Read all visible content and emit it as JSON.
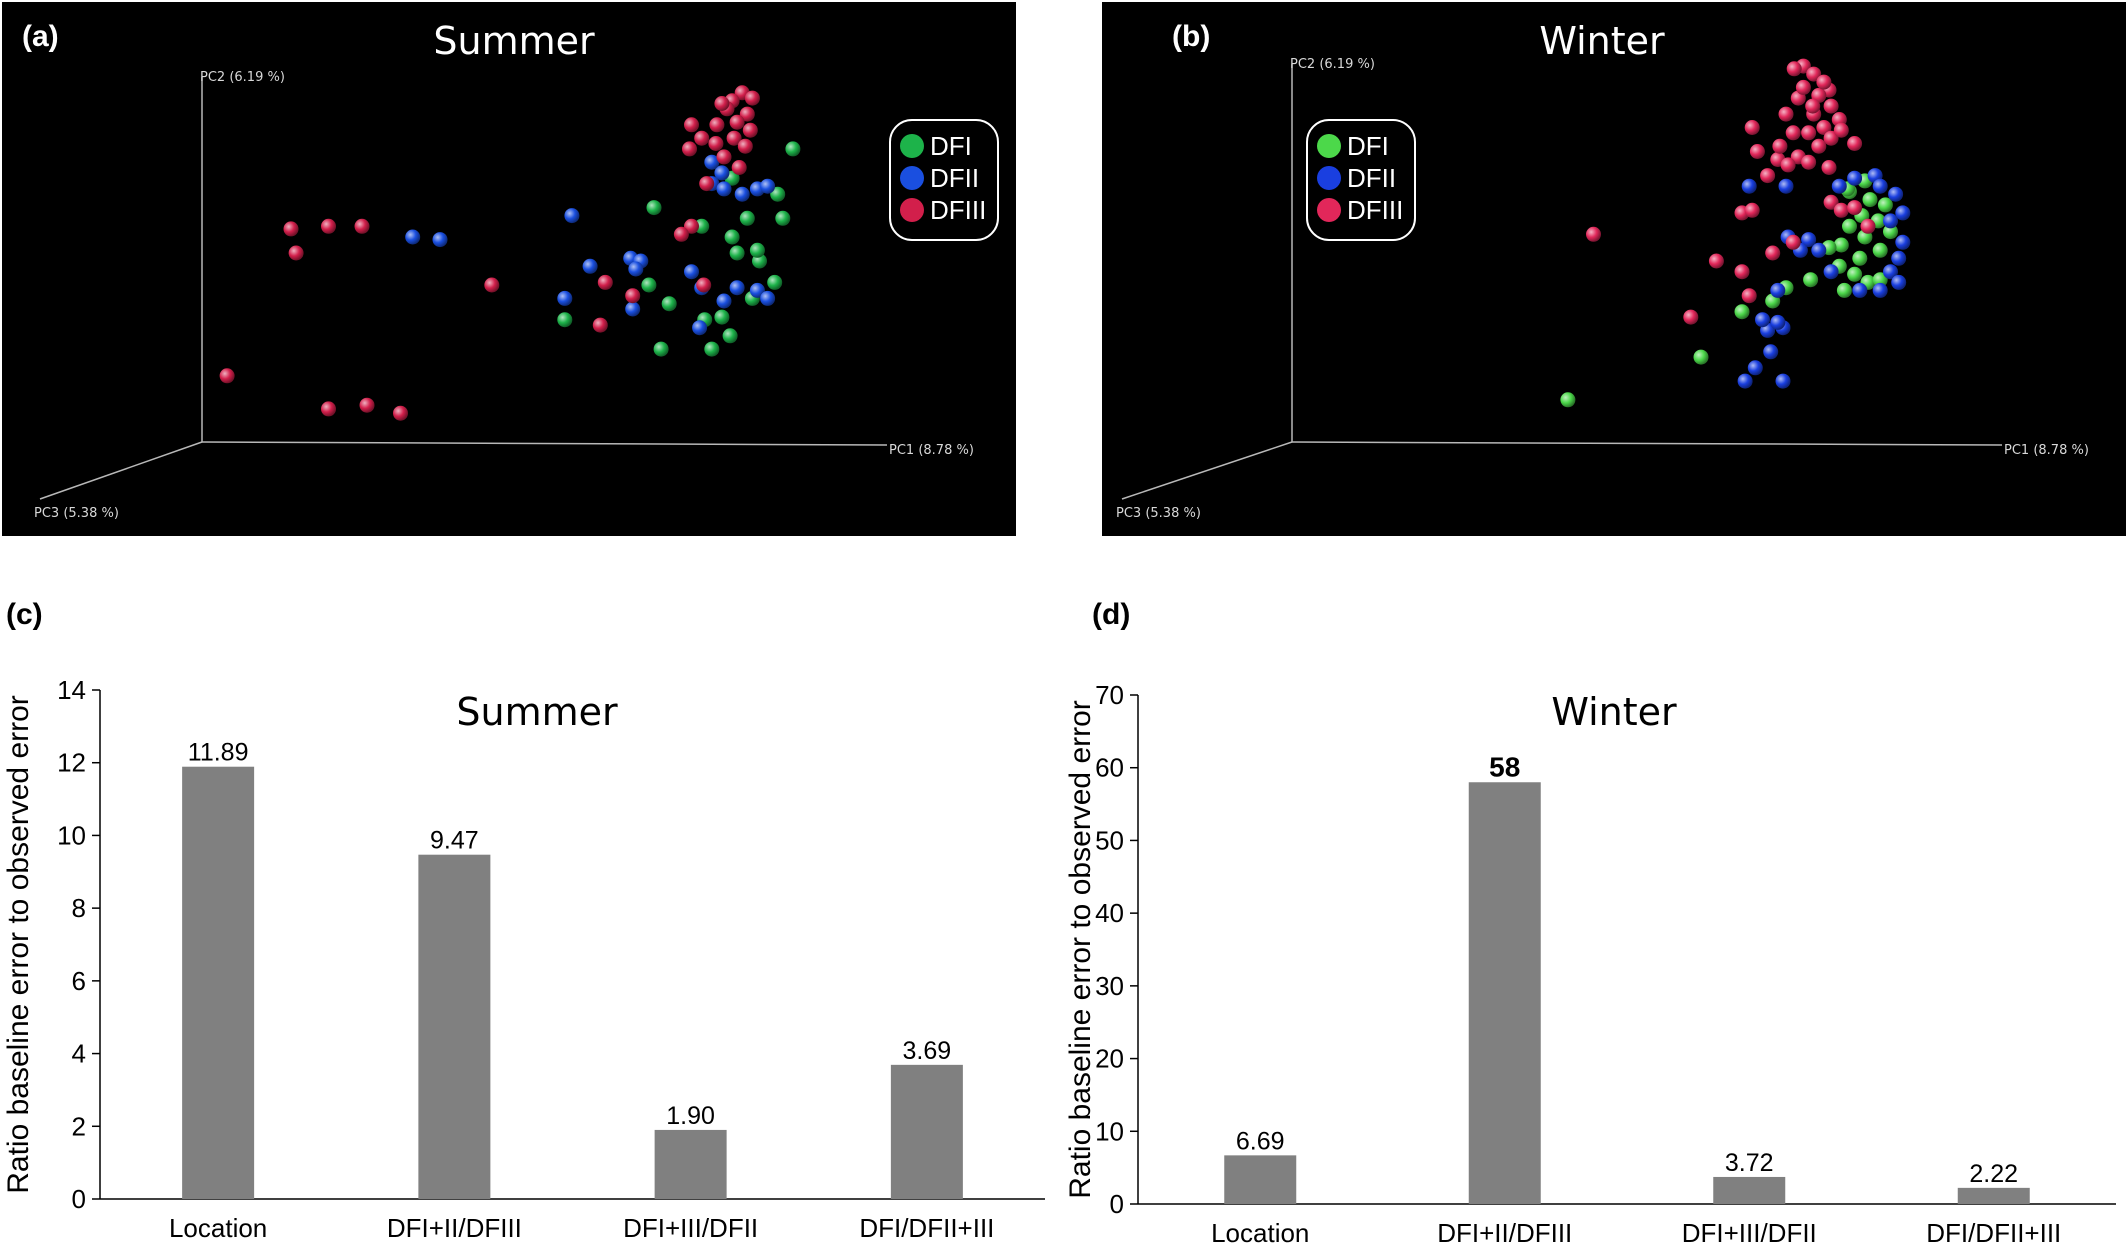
{
  "chart_data": [
    {
      "type": "scatter",
      "panel_label": "(a)",
      "title": "Summer",
      "axes": {
        "x": "PC1 (8.78 %)",
        "y": "PC2 (6.19 %)",
        "z": "PC3 (5.38 %)"
      },
      "legend": {
        "placement": "top-right",
        "entries": [
          {
            "name": "DFI",
            "color": "#1db34a"
          },
          {
            "name": "DFII",
            "color": "#1a4fe0"
          },
          {
            "name": "DFIII",
            "color": "#d21f4b"
          }
        ]
      },
      "series": [
        {
          "name": "DFI",
          "color": "#1db34a",
          "points": [
            [
              0.78,
              0.275
            ],
            [
              0.765,
              0.36
            ],
            [
              0.77,
              0.405
            ],
            [
              0.72,
              0.33
            ],
            [
              0.735,
              0.405
            ],
            [
              0.762,
              0.525
            ],
            [
              0.74,
              0.555
            ],
            [
              0.747,
              0.485
            ],
            [
              0.71,
              0.59
            ],
            [
              0.718,
              0.625
            ],
            [
              0.693,
              0.595
            ],
            [
              0.7,
              0.65
            ],
            [
              0.65,
              0.65
            ],
            [
              0.69,
              0.42
            ],
            [
              0.72,
              0.44
            ],
            [
              0.745,
              0.465
            ],
            [
              0.725,
              0.47
            ],
            [
              0.643,
              0.385
            ],
            [
              0.658,
              0.565
            ],
            [
              0.638,
              0.53
            ],
            [
              0.555,
              0.595
            ]
          ]
        },
        {
          "name": "DFII",
          "color": "#1a4fe0",
          "points": [
            [
              0.7,
              0.34
            ],
            [
              0.712,
              0.35
            ],
            [
              0.73,
              0.36
            ],
            [
              0.745,
              0.35
            ],
            [
              0.755,
              0.345
            ],
            [
              0.71,
              0.32
            ],
            [
              0.7,
              0.3
            ],
            [
              0.562,
              0.4
            ],
            [
              0.58,
              0.495
            ],
            [
              0.62,
              0.48
            ],
            [
              0.63,
              0.485
            ],
            [
              0.68,
              0.505
            ],
            [
              0.69,
              0.535
            ],
            [
              0.725,
              0.535
            ],
            [
              0.745,
              0.54
            ],
            [
              0.712,
              0.56
            ],
            [
              0.755,
              0.555
            ],
            [
              0.622,
              0.575
            ],
            [
              0.555,
              0.555
            ],
            [
              0.625,
              0.5
            ],
            [
              0.405,
              0.44
            ],
            [
              0.432,
              0.445
            ],
            [
              0.688,
              0.61
            ]
          ]
        },
        {
          "name": "DFIII",
          "color": "#d21f4b",
          "points": [
            [
              0.73,
              0.17
            ],
            [
              0.74,
              0.18
            ],
            [
              0.72,
              0.185
            ],
            [
              0.715,
              0.2
            ],
            [
              0.735,
              0.21
            ],
            [
              0.725,
              0.225
            ],
            [
              0.738,
              0.24
            ],
            [
              0.705,
              0.23
            ],
            [
              0.722,
              0.255
            ],
            [
              0.733,
              0.27
            ],
            [
              0.712,
              0.29
            ],
            [
              0.68,
              0.23
            ],
            [
              0.69,
              0.255
            ],
            [
              0.678,
              0.275
            ],
            [
              0.71,
              0.19
            ],
            [
              0.727,
              0.31
            ],
            [
              0.704,
              0.265
            ],
            [
              0.695,
              0.34
            ],
            [
              0.68,
              0.42
            ],
            [
              0.67,
              0.435
            ],
            [
              0.595,
              0.525
            ],
            [
              0.622,
              0.55
            ],
            [
              0.59,
              0.605
            ],
            [
              0.692,
              0.53
            ],
            [
              0.285,
              0.425
            ],
            [
              0.322,
              0.42
            ],
            [
              0.355,
              0.42
            ],
            [
              0.29,
              0.47
            ],
            [
              0.483,
              0.53
            ],
            [
              0.222,
              0.7
            ],
            [
              0.322,
              0.762
            ],
            [
              0.36,
              0.755
            ],
            [
              0.393,
              0.77
            ]
          ]
        }
      ]
    },
    {
      "type": "scatter",
      "panel_label": "(b)",
      "title": "Winter",
      "axes": {
        "x": "PC1 (8.78 %)",
        "y": "PC2 (6.19 %)",
        "z": "PC3 (5.38 %)"
      },
      "legend": {
        "placement": "top-left",
        "entries": [
          {
            "name": "DFI",
            "color": "#4cd84a"
          },
          {
            "name": "DFII",
            "color": "#1a3fe0"
          },
          {
            "name": "DFIII",
            "color": "#e2275a"
          }
        ]
      },
      "series": [
        {
          "name": "DFI",
          "color": "#4cd84a",
          "points": [
            [
              0.745,
              0.335
            ],
            [
              0.73,
              0.355
            ],
            [
              0.75,
              0.37
            ],
            [
              0.765,
              0.38
            ],
            [
              0.742,
              0.4
            ],
            [
              0.758,
              0.41
            ],
            [
              0.73,
              0.42
            ],
            [
              0.77,
              0.43
            ],
            [
              0.745,
              0.44
            ],
            [
              0.722,
              0.455
            ],
            [
              0.76,
              0.465
            ],
            [
              0.74,
              0.48
            ],
            [
              0.72,
              0.495
            ],
            [
              0.735,
              0.51
            ],
            [
              0.748,
              0.525
            ],
            [
              0.725,
              0.54
            ],
            [
              0.71,
              0.46
            ],
            [
              0.76,
              0.52
            ],
            [
              0.692,
              0.52
            ],
            [
              0.668,
              0.535
            ],
            [
              0.655,
              0.56
            ],
            [
              0.625,
              0.58
            ],
            [
              0.585,
              0.665
            ],
            [
              0.455,
              0.745
            ],
            [
              0.728,
              0.35
            ]
          ]
        },
        {
          "name": "DFII",
          "color": "#1a3fe0",
          "points": [
            [
              0.755,
              0.325
            ],
            [
              0.735,
              0.33
            ],
            [
              0.775,
              0.36
            ],
            [
              0.76,
              0.345
            ],
            [
              0.72,
              0.345
            ],
            [
              0.782,
              0.395
            ],
            [
              0.77,
              0.41
            ],
            [
              0.782,
              0.45
            ],
            [
              0.778,
              0.48
            ],
            [
              0.77,
              0.505
            ],
            [
              0.76,
              0.54
            ],
            [
              0.778,
              0.525
            ],
            [
              0.74,
              0.54
            ],
            [
              0.7,
              0.465
            ],
            [
              0.712,
              0.505
            ],
            [
              0.69,
              0.445
            ],
            [
              0.67,
              0.44
            ],
            [
              0.682,
              0.465
            ],
            [
              0.66,
              0.54
            ],
            [
              0.65,
              0.615
            ],
            [
              0.665,
              0.61
            ],
            [
              0.653,
              0.655
            ],
            [
              0.638,
              0.685
            ],
            [
              0.665,
              0.71
            ],
            [
              0.628,
              0.71
            ],
            [
              0.66,
              0.6
            ],
            [
              0.645,
              0.595
            ],
            [
              0.632,
              0.345
            ],
            [
              0.668,
              0.345
            ]
          ]
        },
        {
          "name": "DFIII",
          "color": "#e2275a",
          "points": [
            [
              0.685,
              0.12
            ],
            [
              0.695,
              0.135
            ],
            [
              0.71,
              0.165
            ],
            [
              0.7,
              0.175
            ],
            [
              0.68,
              0.18
            ],
            [
              0.712,
              0.195
            ],
            [
              0.695,
              0.21
            ],
            [
              0.72,
              0.22
            ],
            [
              0.705,
              0.235
            ],
            [
              0.69,
              0.245
            ],
            [
              0.675,
              0.245
            ],
            [
              0.712,
              0.255
            ],
            [
              0.735,
              0.265
            ],
            [
              0.7,
              0.27
            ],
            [
              0.68,
              0.29
            ],
            [
              0.69,
              0.3
            ],
            [
              0.71,
              0.31
            ],
            [
              0.64,
              0.28
            ],
            [
              0.635,
              0.235
            ],
            [
              0.66,
              0.295
            ],
            [
              0.65,
              0.325
            ],
            [
              0.676,
              0.125
            ],
            [
              0.705,
              0.15
            ],
            [
              0.685,
              0.16
            ],
            [
              0.668,
              0.21
            ],
            [
              0.694,
              0.195
            ],
            [
              0.722,
              0.24
            ],
            [
              0.662,
              0.27
            ],
            [
              0.67,
              0.305
            ],
            [
              0.625,
              0.395
            ],
            [
              0.635,
              0.39
            ],
            [
              0.675,
              0.45
            ],
            [
              0.655,
              0.47
            ],
            [
              0.625,
              0.505
            ],
            [
              0.632,
              0.55
            ],
            [
              0.6,
              0.485
            ],
            [
              0.48,
              0.435
            ],
            [
              0.575,
              0.59
            ],
            [
              0.712,
              0.375
            ],
            [
              0.722,
              0.39
            ],
            [
              0.748,
              0.42
            ],
            [
              0.735,
              0.385
            ]
          ]
        }
      ]
    },
    {
      "type": "bar",
      "panel_label": "(c)",
      "title": "Summer",
      "categories": [
        "Location",
        "DFI+II/DFIII",
        "DFI+III/DFII",
        "DFI/DFII+III"
      ],
      "values": [
        11.89,
        9.47,
        1.9,
        3.69
      ],
      "data_labels": [
        "11.89",
        "9.47",
        "1.90",
        "3.69"
      ],
      "bold_labels": [
        false,
        false,
        false,
        false
      ],
      "ylabel": "Ratio baseline error to observed error",
      "xlabel": "",
      "ylim": [
        0,
        14
      ],
      "yticks": [
        0,
        2,
        4,
        6,
        8,
        10,
        12,
        14
      ],
      "bar_color": "#808080",
      "grid": false
    },
    {
      "type": "bar",
      "panel_label": "(d)",
      "title": "Winter",
      "categories": [
        "Location",
        "DFI+II/DFIII",
        "DFI+III/DFII",
        "DFI/DFII+III"
      ],
      "values": [
        6.69,
        58,
        3.72,
        2.22
      ],
      "data_labels": [
        "6.69",
        "58",
        "3.72",
        "2.22"
      ],
      "bold_labels": [
        false,
        true,
        false,
        false
      ],
      "ylabel": "Ratio baseline error to observed error",
      "xlabel": "",
      "ylim": [
        0,
        70
      ],
      "yticks": [
        0,
        10,
        20,
        30,
        40,
        50,
        60,
        70
      ],
      "bar_color": "#808080",
      "grid": false
    }
  ]
}
